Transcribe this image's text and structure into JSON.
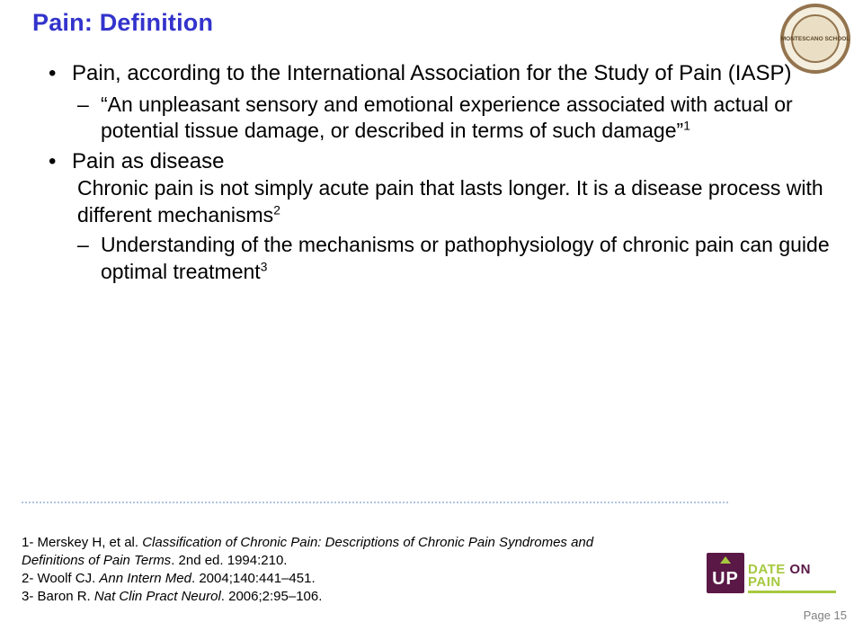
{
  "colors": {
    "title": "#3333cc",
    "text": "#000000",
    "divider": "#b0c4e0",
    "page_number": "#808080",
    "logo_ring_border": "#93744e",
    "logo_ring_bg": "#f4eede",
    "logo_inner_bg": "#eadfc5",
    "logo_text": "#5c4528",
    "brand_purple": "#5a1846",
    "brand_green": "#a6c83e"
  },
  "fonts": {
    "family": "Arial",
    "title_size_pt": 20,
    "body_size_pt": 18,
    "ref_size_pt": 11,
    "pagenum_size_pt": 10
  },
  "title": "Pain: Definition",
  "bullets": [
    {
      "text": "Pain, according to the International Association for the Study of Pain (IASP)",
      "sub": [
        "“An unpleasant sensory and emotional experience associated with actual or potential tissue damage, or described in terms of such damage”"
      ],
      "sub_sup": [
        "1"
      ]
    },
    {
      "text": "Pain as disease",
      "intro": "Chronic pain is not simply acute pain that lasts longer. It is a disease process with different mechanisms",
      "intro_sup": "2",
      "sub": [
        "Understanding of the mechanisms or pathophysiology of chronic pain can guide optimal treatment"
      ],
      "sub_sup": [
        "3"
      ]
    }
  ],
  "references": [
    {
      "prefix": "1- ",
      "authors": "Merskey H, et al. ",
      "title_italic": "Classification of Chronic Pain: Descriptions of Chronic Pain Syndromes and Definitions of Pain Terms",
      "suffix": ". 2nd ed. 1994:210."
    },
    {
      "prefix": "2- ",
      "authors": "Woolf CJ. ",
      "title_italic": "Ann Intern Med",
      "suffix": ". 2004;140:441–451."
    },
    {
      "prefix": "3- ",
      "authors": "Baron R. ",
      "title_italic": "Nat Clin Pract Neurol",
      "suffix": ". 2006;2:95–106."
    }
  ],
  "page_number": "Page 15",
  "top_logo_text": "MONTESCANO SCHOOL",
  "bottom_logo": {
    "box_text": "UP",
    "word_green1": "DATE",
    "word_purple1": " ON ",
    "word_green2": "PAIN"
  }
}
